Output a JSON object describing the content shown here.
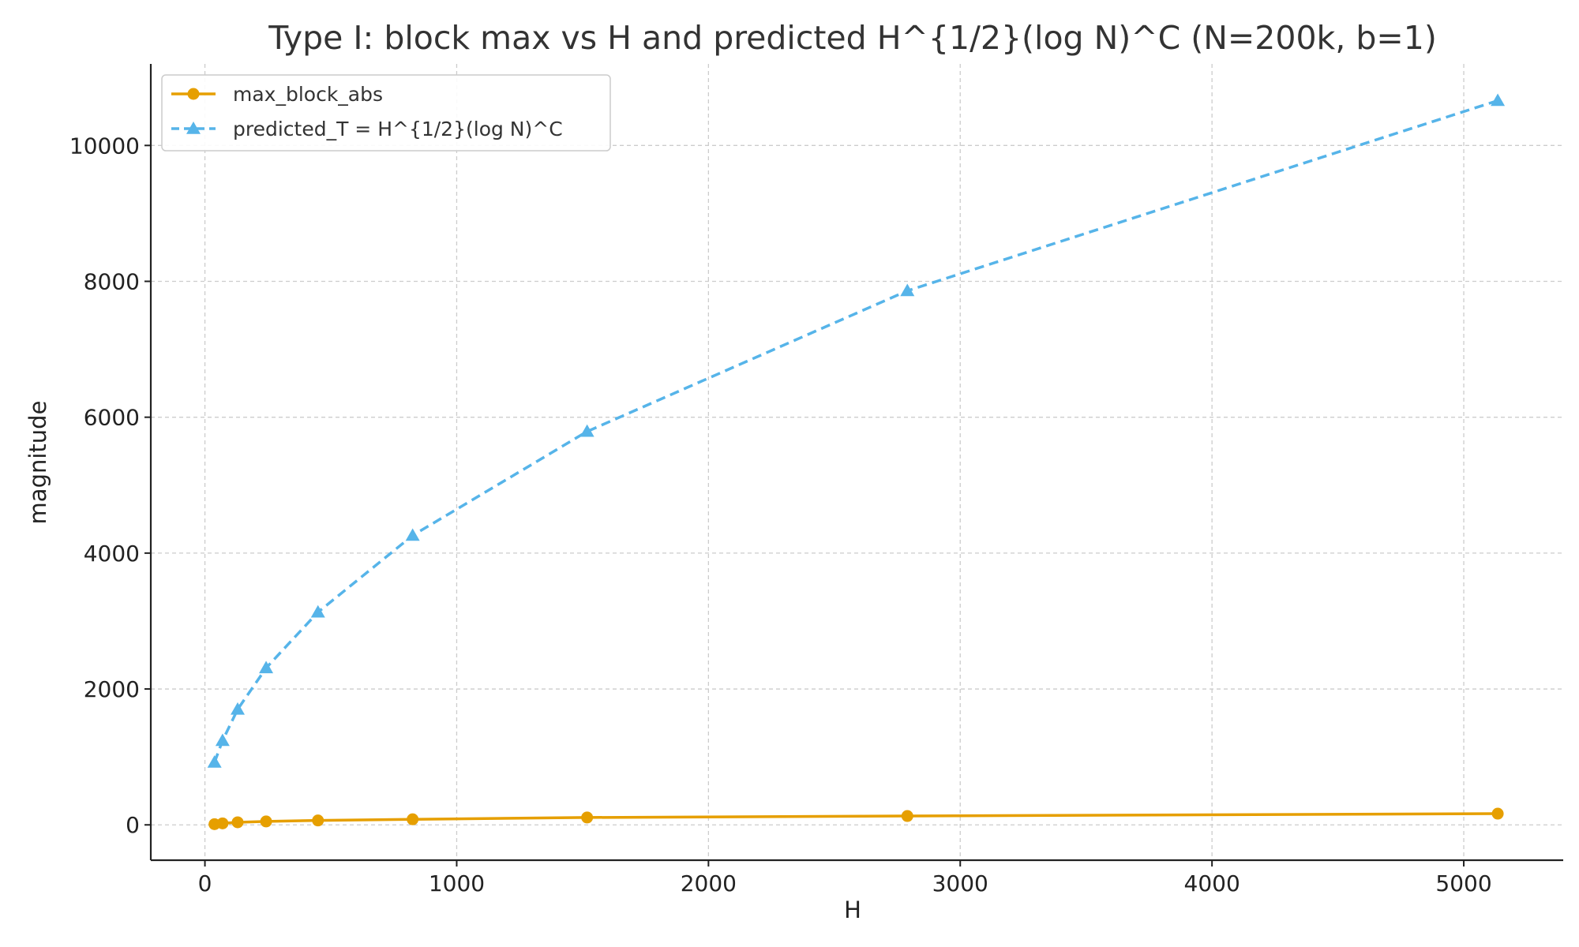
{
  "chart_data": {
    "type": "line",
    "title": "Type I: block max vs H and predicted H^{1/2}(log N)^C (N=200k, b=1)",
    "xlabel": "H",
    "ylabel": "magnitude",
    "xlim": [
      -215,
      5395
    ],
    "ylim": [
      -520,
      11200
    ],
    "xticks": [
      0,
      1000,
      2000,
      3000,
      4000,
      5000
    ],
    "yticks": [
      0,
      2000,
      4000,
      6000,
      8000,
      10000
    ],
    "grid": true,
    "legend_position": "top-left",
    "x": [
      38,
      70,
      130,
      243,
      449,
      825,
      1518,
      2790,
      5135
    ],
    "series": [
      {
        "name": "max_block_abs",
        "color": "#E69F00",
        "line_style": "solid",
        "marker": "circle",
        "values": [
          10,
          22,
          38,
          50,
          65,
          82,
          108,
          130,
          165
        ]
      },
      {
        "name": "predicted_T = H^{1/2}(log N)^C",
        "color": "#56B4E9",
        "line_style": "dashed",
        "marker": "triangle",
        "values": [
          920,
          1240,
          1700,
          2310,
          3130,
          4260,
          5790,
          7860,
          10660
        ]
      }
    ]
  }
}
